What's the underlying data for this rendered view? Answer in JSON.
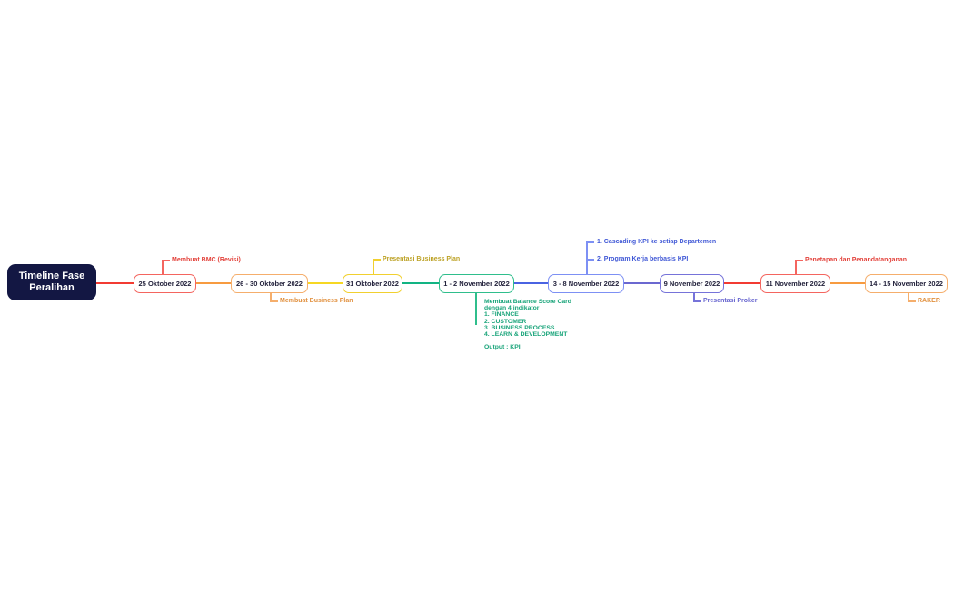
{
  "root": {
    "title": "Timeline Fase Peralihan",
    "bg_color": "#131743",
    "text_color": "#ffffff"
  },
  "nodes": [
    {
      "label": "25 Oktober 2022",
      "border_color": "#F4655F",
      "line_color": "#F23B32",
      "annotation_color": "#E3423B",
      "annotations": [
        {
          "text": "Membuat BMC (Revisi)",
          "placement": "above"
        }
      ]
    },
    {
      "label": "26 - 30 Oktober 2022",
      "border_color": "#F5AE6C",
      "line_color": "#F79B40",
      "annotation_color": "#E1903E",
      "annotations": [
        {
          "text": "Membuat Business Plan",
          "placement": "below"
        }
      ]
    },
    {
      "label": "31 Oktober 2022",
      "border_color": "#F1D02F",
      "line_color": "#F6D723",
      "annotation_color": "#BCA124",
      "annotations": [
        {
          "text": "Presentasi Business Plan",
          "placement": "above"
        }
      ]
    },
    {
      "label": "1 - 2 November 2022",
      "border_color": "#2FBE8C",
      "line_color": "#12B483",
      "annotation_color": "#16A378",
      "annotations": [
        {
          "text": "Membuat Balance Score Card\ndengan 4 indikator\n1. FINANCE\n2. CUSTOMER\n3. BUSINESS PROCESS\n4. LEARN & DEVELOPMENT\n\nOutput : KPI",
          "placement": "below"
        }
      ]
    },
    {
      "label": "3 - 8 November 2022",
      "border_color": "#7D90F4",
      "line_color": "#4A63E2",
      "annotation_color": "#4058D6",
      "annotations": [
        {
          "text": "1. Cascading KPI ke setiap Departemen",
          "placement": "above"
        },
        {
          "text": "2. Program Kerja berbasis KPI",
          "placement": "above"
        }
      ]
    },
    {
      "label": "9 November 2022",
      "border_color": "#7673D9",
      "line_color": "#6B68D0",
      "annotation_color": "#6765CF",
      "annotations": [
        {
          "text": "Presentasi Proker",
          "placement": "below"
        }
      ]
    },
    {
      "label": "11 November 2022",
      "border_color": "#F4655F",
      "line_color": "#F23B32",
      "annotation_color": "#E3423B",
      "annotations": [
        {
          "text": "Penetapan dan Penandatanganan",
          "placement": "above"
        }
      ]
    },
    {
      "label": "14 - 15 November 2022",
      "border_color": "#F5AE6C",
      "line_color": "#F79B40",
      "annotation_color": "#E1903E",
      "annotations": [
        {
          "text": "RAKER",
          "placement": "below"
        }
      ]
    }
  ]
}
